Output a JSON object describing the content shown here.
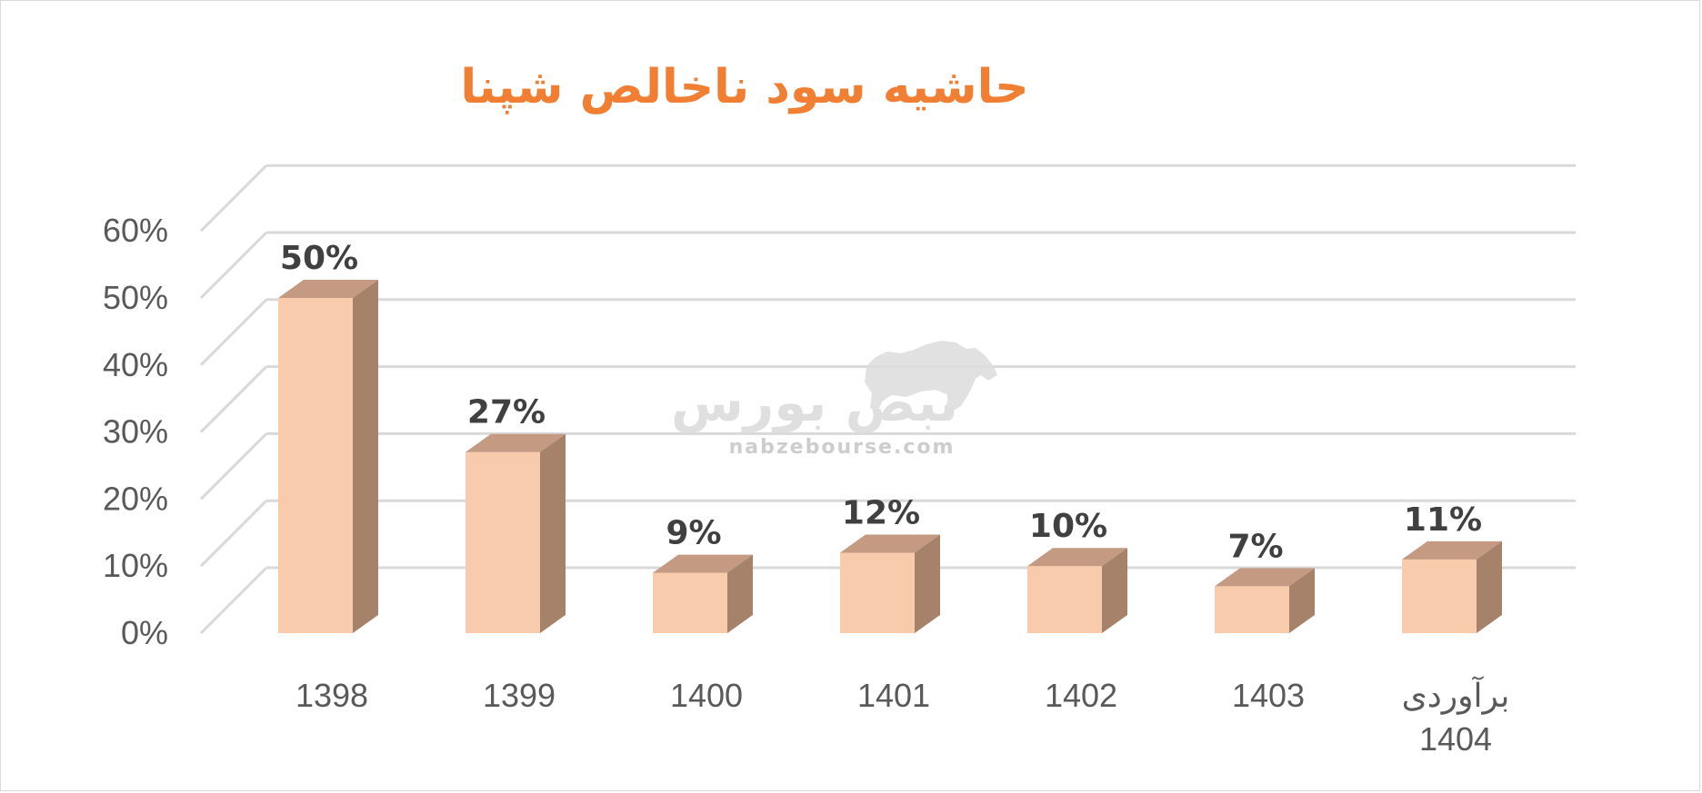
{
  "chart_data": {
    "type": "bar",
    "title": "حاشیه سود ناخالص شپنا",
    "xlabel": "",
    "ylabel": "",
    "categories": [
      "1398",
      "1399",
      "1400",
      "1401",
      "1402",
      "1403",
      "برآوردی 1404"
    ],
    "category_lines": [
      [
        "1398"
      ],
      [
        "1399"
      ],
      [
        "1400"
      ],
      [
        "1401"
      ],
      [
        "1402"
      ],
      [
        "1403"
      ],
      [
        "برآوردی",
        "1404"
      ]
    ],
    "values": [
      50,
      27,
      9,
      12,
      10,
      7,
      11
    ],
    "data_labels": [
      "50%",
      "27%",
      "9%",
      "12%",
      "10%",
      "7%",
      "11%"
    ],
    "ylim": [
      0,
      60
    ],
    "yticks": [
      0,
      10,
      20,
      30,
      40,
      50,
      60
    ],
    "ytick_labels": [
      "0%",
      "10%",
      "20%",
      "30%",
      "40%",
      "50%",
      "60%"
    ],
    "grid": true,
    "legend": "none",
    "style": "3d-column",
    "colors": {
      "bar_front": "#f8cbad",
      "bar_top": "#c49a82",
      "bar_side": "#a6826b",
      "title": "#f07f33",
      "gridline": "#d9d9d9"
    }
  },
  "watermark": {
    "brand": "نبض بورس",
    "domain": "nabzebourse.com",
    "icon": "bull-icon"
  }
}
